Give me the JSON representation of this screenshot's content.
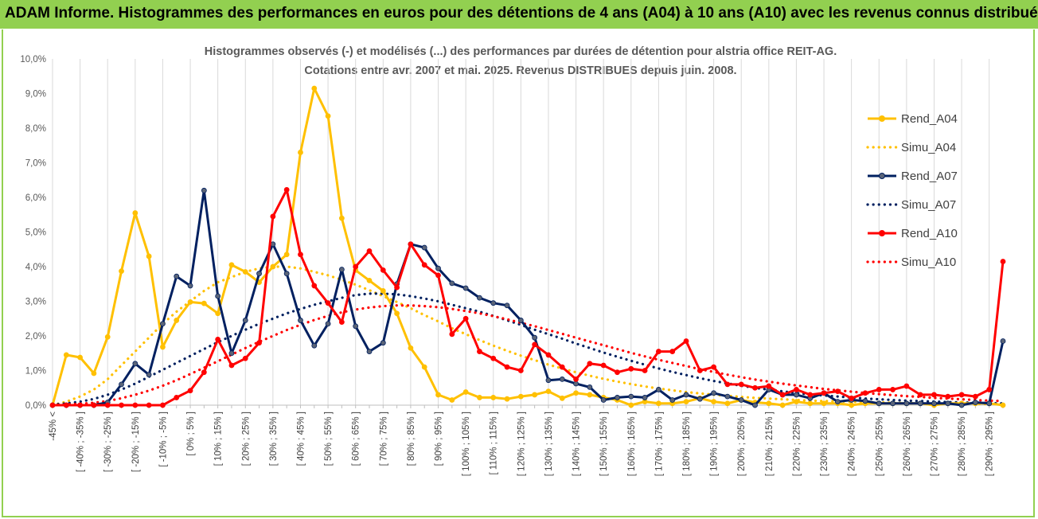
{
  "header": {
    "title": "ADAM Informe. Histogrammes des performances en euros pour des détentions de 4 ans (A04) à 10 ans (A10) avec les revenus connus distribués",
    "accent_color": "#92d050"
  },
  "chart_data": {
    "type": "line",
    "title": "Histogrammes observés (-) et modélisés (...) des performances par durées de détention pour alstria office REIT-AG.",
    "subtitle": "Cotations entre avr. 2007 et mai. 2025.  Revenus DISTRIBUES depuis juin. 2008.",
    "xlabel": "",
    "ylabel": "",
    "ylim": [
      0,
      10
    ],
    "y_ticks": [
      "0,0%",
      "1,0%",
      "2,0%",
      "3,0%",
      "4,0%",
      "5,0%",
      "6,0%",
      "7,0%",
      "8,0%",
      "9,0%",
      "10,0%"
    ],
    "x_tick_labels": [
      "-45% <",
      "[ -40% ; -35% ]",
      "[ -30% ; -25% ]",
      "[ -20% ; -15% ]",
      "[ -10% ; -5% ]",
      "[ 0% ; 5% ]",
      "[ 10% ; 15% ]",
      "[ 20% ; 25% ]",
      "[ 30% ; 35% ]",
      "[ 40% ; 45% ]",
      "[ 50% ; 55% ]",
      "[ 60% ; 65% ]",
      "[ 70% ; 75% ]",
      "[ 80% ; 85% ]",
      "[ 90% ; 95% ]",
      "[ 100% ; 105% ]",
      "[ 110% ; 115% ]",
      "[ 120% ; 125% ]",
      "[ 130% ; 135% ]",
      "[ 140% ; 145% ]",
      "[ 150% ; 155% ]",
      "[ 160% ; 165% ]",
      "[ 170% ; 175% ]",
      "[ 180% ; 185% ]",
      "[ 190% ; 195% ]",
      "[ 200% ; 205% ]",
      "[ 210% ; 215% ]",
      "[ 220% ; 225% ]",
      "[ 230% ; 235% ]",
      "[ 240% ; 245% ]",
      "[ 250% ; 255% ]",
      "[ 260% ; 265% ]",
      "[ 270% ; 275% ]",
      "[ 280% ; 285% ]",
      "[ 290% ; 295% ]"
    ],
    "n_bins": 70,
    "legend_position": "right",
    "grid": "vertical",
    "series": [
      {
        "name": "Rend_A04",
        "color": "#ffc000",
        "style": "solid",
        "values": [
          0.0,
          1.45,
          1.38,
          0.92,
          1.97,
          3.87,
          5.55,
          4.3,
          1.68,
          2.45,
          2.98,
          2.94,
          2.65,
          4.05,
          3.85,
          3.55,
          4.0,
          4.35,
          7.3,
          9.15,
          8.35,
          5.4,
          3.9,
          3.6,
          3.3,
          2.65,
          1.65,
          1.1,
          0.3,
          0.15,
          0.38,
          0.22,
          0.22,
          0.18,
          0.25,
          0.3,
          0.4,
          0.2,
          0.35,
          0.3,
          0.22,
          0.15,
          0.0,
          0.1,
          0.05,
          0.05,
          0.1,
          0.2,
          0.1,
          0.05,
          0.15,
          0.08,
          0.05,
          0.0,
          0.1,
          0.05,
          0.05,
          0.05,
          0.0,
          0.05,
          0.05,
          0.05,
          0.05,
          0.05,
          0.0,
          0.05,
          0.05,
          0.05,
          0.05,
          0.0
        ]
      },
      {
        "name": "Simu_A04",
        "color": "#ffc000",
        "style": "dotted",
        "values": [
          0.0,
          0.1,
          0.25,
          0.45,
          0.75,
          1.15,
          1.55,
          1.95,
          2.35,
          2.7,
          3.0,
          3.3,
          3.55,
          3.7,
          3.85,
          3.95,
          4.0,
          4.0,
          3.95,
          3.85,
          3.75,
          3.62,
          3.48,
          3.32,
          3.15,
          2.98,
          2.8,
          2.6,
          2.42,
          2.22,
          2.05,
          1.88,
          1.72,
          1.57,
          1.43,
          1.3,
          1.17,
          1.06,
          0.95,
          0.85,
          0.76,
          0.68,
          0.61,
          0.54,
          0.48,
          0.43,
          0.38,
          0.34,
          0.3,
          0.27,
          0.24,
          0.21,
          0.19,
          0.17,
          0.15,
          0.13,
          0.12,
          0.11,
          0.1,
          0.09,
          0.08,
          0.07,
          0.06,
          0.06,
          0.05,
          0.05,
          0.04,
          0.04,
          0.03,
          0.03
        ]
      },
      {
        "name": "Rend_A07",
        "color": "#002060",
        "style": "solid",
        "values": [
          0.0,
          0.0,
          0.0,
          0.0,
          0.08,
          0.6,
          1.2,
          0.88,
          2.35,
          3.72,
          3.45,
          6.2,
          3.15,
          1.5,
          2.45,
          3.8,
          4.65,
          3.8,
          2.45,
          1.72,
          2.35,
          3.92,
          2.28,
          1.55,
          1.8,
          3.5,
          4.65,
          4.55,
          3.95,
          3.52,
          3.38,
          3.1,
          2.95,
          2.88,
          2.45,
          1.95,
          0.72,
          0.75,
          0.62,
          0.52,
          0.15,
          0.22,
          0.25,
          0.22,
          0.45,
          0.15,
          0.3,
          0.18,
          0.35,
          0.25,
          0.15,
          0.0,
          0.45,
          0.3,
          0.3,
          0.2,
          0.35,
          0.1,
          0.15,
          0.12,
          0.05,
          0.05,
          0.05,
          0.05,
          0.05,
          0.05,
          0.0,
          0.08,
          0.05,
          1.85
        ]
      },
      {
        "name": "Simu_A07",
        "color": "#002060",
        "style": "dotted",
        "values": [
          0.02,
          0.05,
          0.1,
          0.18,
          0.3,
          0.45,
          0.62,
          0.82,
          1.02,
          1.22,
          1.42,
          1.62,
          1.82,
          2.0,
          2.18,
          2.35,
          2.5,
          2.65,
          2.78,
          2.9,
          3.0,
          3.1,
          3.18,
          3.22,
          3.22,
          3.2,
          3.15,
          3.08,
          3.0,
          2.9,
          2.8,
          2.7,
          2.58,
          2.45,
          2.32,
          2.18,
          2.05,
          1.92,
          1.78,
          1.65,
          1.52,
          1.4,
          1.28,
          1.17,
          1.06,
          0.96,
          0.87,
          0.78,
          0.7,
          0.63,
          0.56,
          0.5,
          0.45,
          0.4,
          0.35,
          0.31,
          0.28,
          0.25,
          0.22,
          0.19,
          0.17,
          0.15,
          0.13,
          0.12,
          0.1,
          0.09,
          0.08,
          0.07,
          0.06,
          0.05
        ]
      },
      {
        "name": "Rend_A10",
        "color": "#ff0000",
        "style": "solid",
        "values": [
          0.0,
          0.0,
          0.0,
          0.0,
          0.0,
          0.0,
          0.0,
          0.0,
          0.0,
          0.22,
          0.42,
          0.95,
          1.9,
          1.15,
          1.35,
          1.8,
          5.45,
          6.22,
          4.35,
          3.45,
          2.95,
          2.4,
          4.0,
          4.45,
          3.9,
          3.4,
          4.65,
          4.05,
          3.75,
          2.05,
          2.5,
          1.55,
          1.35,
          1.1,
          1.0,
          1.75,
          1.45,
          1.1,
          0.75,
          1.2,
          1.15,
          0.95,
          1.05,
          1.0,
          1.55,
          1.55,
          1.85,
          1.0,
          1.1,
          0.6,
          0.6,
          0.5,
          0.55,
          0.3,
          0.45,
          0.3,
          0.35,
          0.4,
          0.2,
          0.35,
          0.45,
          0.45,
          0.55,
          0.3,
          0.3,
          0.25,
          0.3,
          0.25,
          0.45,
          4.15
        ]
      },
      {
        "name": "Simu_A10",
        "color": "#ff0000",
        "style": "dotted",
        "values": [
          0.0,
          0.02,
          0.04,
          0.07,
          0.12,
          0.2,
          0.3,
          0.42,
          0.56,
          0.72,
          0.9,
          1.08,
          1.27,
          1.46,
          1.65,
          1.83,
          2.0,
          2.17,
          2.32,
          2.46,
          2.58,
          2.68,
          2.76,
          2.82,
          2.86,
          2.88,
          2.88,
          2.86,
          2.83,
          2.78,
          2.72,
          2.65,
          2.57,
          2.48,
          2.38,
          2.28,
          2.17,
          2.06,
          1.95,
          1.84,
          1.73,
          1.62,
          1.51,
          1.41,
          1.31,
          1.22,
          1.13,
          1.04,
          0.96,
          0.88,
          0.81,
          0.74,
          0.68,
          0.62,
          0.57,
          0.52,
          0.47,
          0.43,
          0.39,
          0.35,
          0.32,
          0.29,
          0.26,
          0.24,
          0.21,
          0.19,
          0.17,
          0.15,
          0.13,
          0.12
        ]
      }
    ]
  }
}
